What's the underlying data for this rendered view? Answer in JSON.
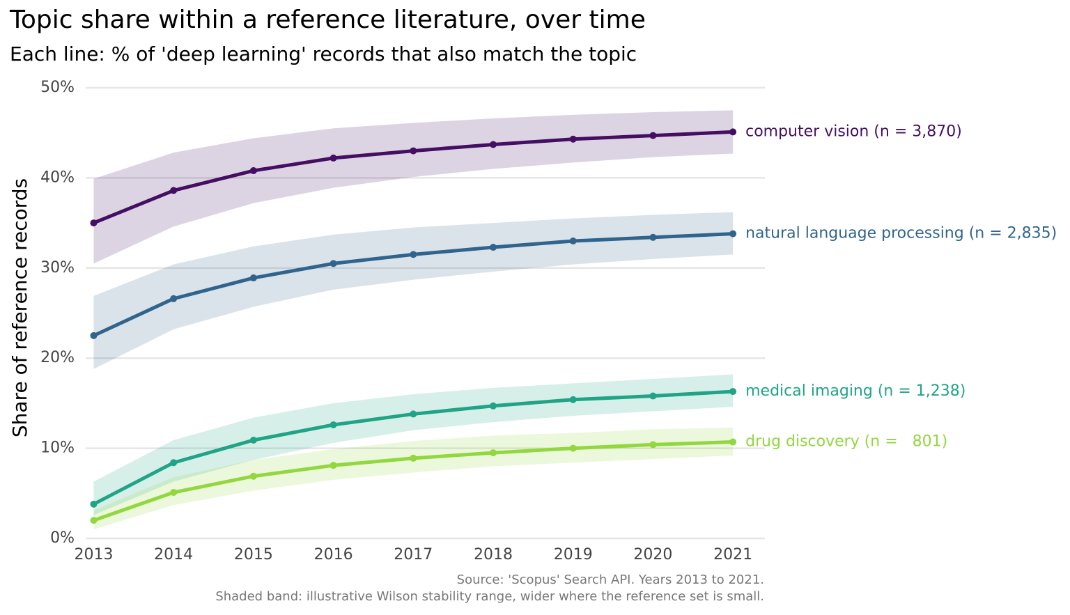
{
  "chart_data": {
    "type": "line",
    "title": "Topic share within a reference literature, over time",
    "subtitle": "Each line: % of 'deep learning' records that also match the topic",
    "y_label": "Share of reference records",
    "caption": [
      "Source: 'Scopus' Search API. Years 2013 to 2021.",
      "Shaded band: illustrative Wilson stability range, wider where the reference set is small."
    ],
    "x": [
      2013,
      2014,
      2015,
      2016,
      2017,
      2018,
      2019,
      2020,
      2021
    ],
    "xlim": [
      2012.9,
      2021.4
    ],
    "xticks": [
      2013,
      2014,
      2015,
      2016,
      2017,
      2018,
      2019,
      2020,
      2021
    ],
    "ylim": [
      0,
      50
    ],
    "yticks": [
      {
        "value": 0,
        "label": "0%"
      },
      {
        "value": 10,
        "label": "10%"
      },
      {
        "value": 20,
        "label": "20%"
      },
      {
        "value": 30,
        "label": "30%"
      },
      {
        "value": 40,
        "label": "40%"
      },
      {
        "value": 50,
        "label": "50%"
      }
    ],
    "grid": true,
    "series": [
      {
        "name": "computer vision (n = 3,870)",
        "color": "#440f62",
        "values": [
          35.0,
          38.6,
          40.8,
          42.2,
          43.0,
          43.7,
          44.3,
          44.7,
          45.1
        ],
        "lower": [
          30.5,
          34.6,
          37.2,
          38.9,
          40.1,
          41.0,
          41.7,
          42.3,
          42.7
        ],
        "upper": [
          39.9,
          42.8,
          44.4,
          45.5,
          46.1,
          46.6,
          47.0,
          47.3,
          47.5
        ]
      },
      {
        "name": "natural language processing (n = 2,835)",
        "color": "#31648c",
        "values": [
          22.5,
          26.6,
          28.9,
          30.5,
          31.5,
          32.3,
          33.0,
          33.4,
          33.8
        ],
        "lower": [
          18.8,
          23.2,
          25.7,
          27.6,
          28.7,
          29.6,
          30.4,
          31.0,
          31.5
        ],
        "upper": [
          26.9,
          30.4,
          32.4,
          33.7,
          34.5,
          35.0,
          35.5,
          35.9,
          36.2
        ]
      },
      {
        "name": "medical imaging (n = 1,238)",
        "color": "#20a486",
        "values": [
          3.8,
          8.4,
          10.9,
          12.6,
          13.8,
          14.7,
          15.4,
          15.8,
          16.3
        ],
        "lower": [
          2.6,
          6.3,
          8.7,
          10.6,
          12.0,
          12.9,
          13.6,
          14.1,
          14.6
        ],
        "upper": [
          6.3,
          10.9,
          13.4,
          15.0,
          16.0,
          16.7,
          17.2,
          17.7,
          18.2
        ]
      },
      {
        "name": "drug discovery (n =   801)",
        "color": "#92d73e",
        "values": [
          2.0,
          5.1,
          6.9,
          8.1,
          8.9,
          9.5,
          10.0,
          10.4,
          10.7
        ],
        "lower": [
          1.0,
          3.7,
          5.3,
          6.5,
          7.3,
          8.0,
          8.4,
          8.8,
          9.2
        ],
        "upper": [
          3.1,
          6.8,
          8.7,
          9.9,
          10.8,
          11.4,
          11.7,
          12.1,
          12.3
        ]
      }
    ]
  }
}
